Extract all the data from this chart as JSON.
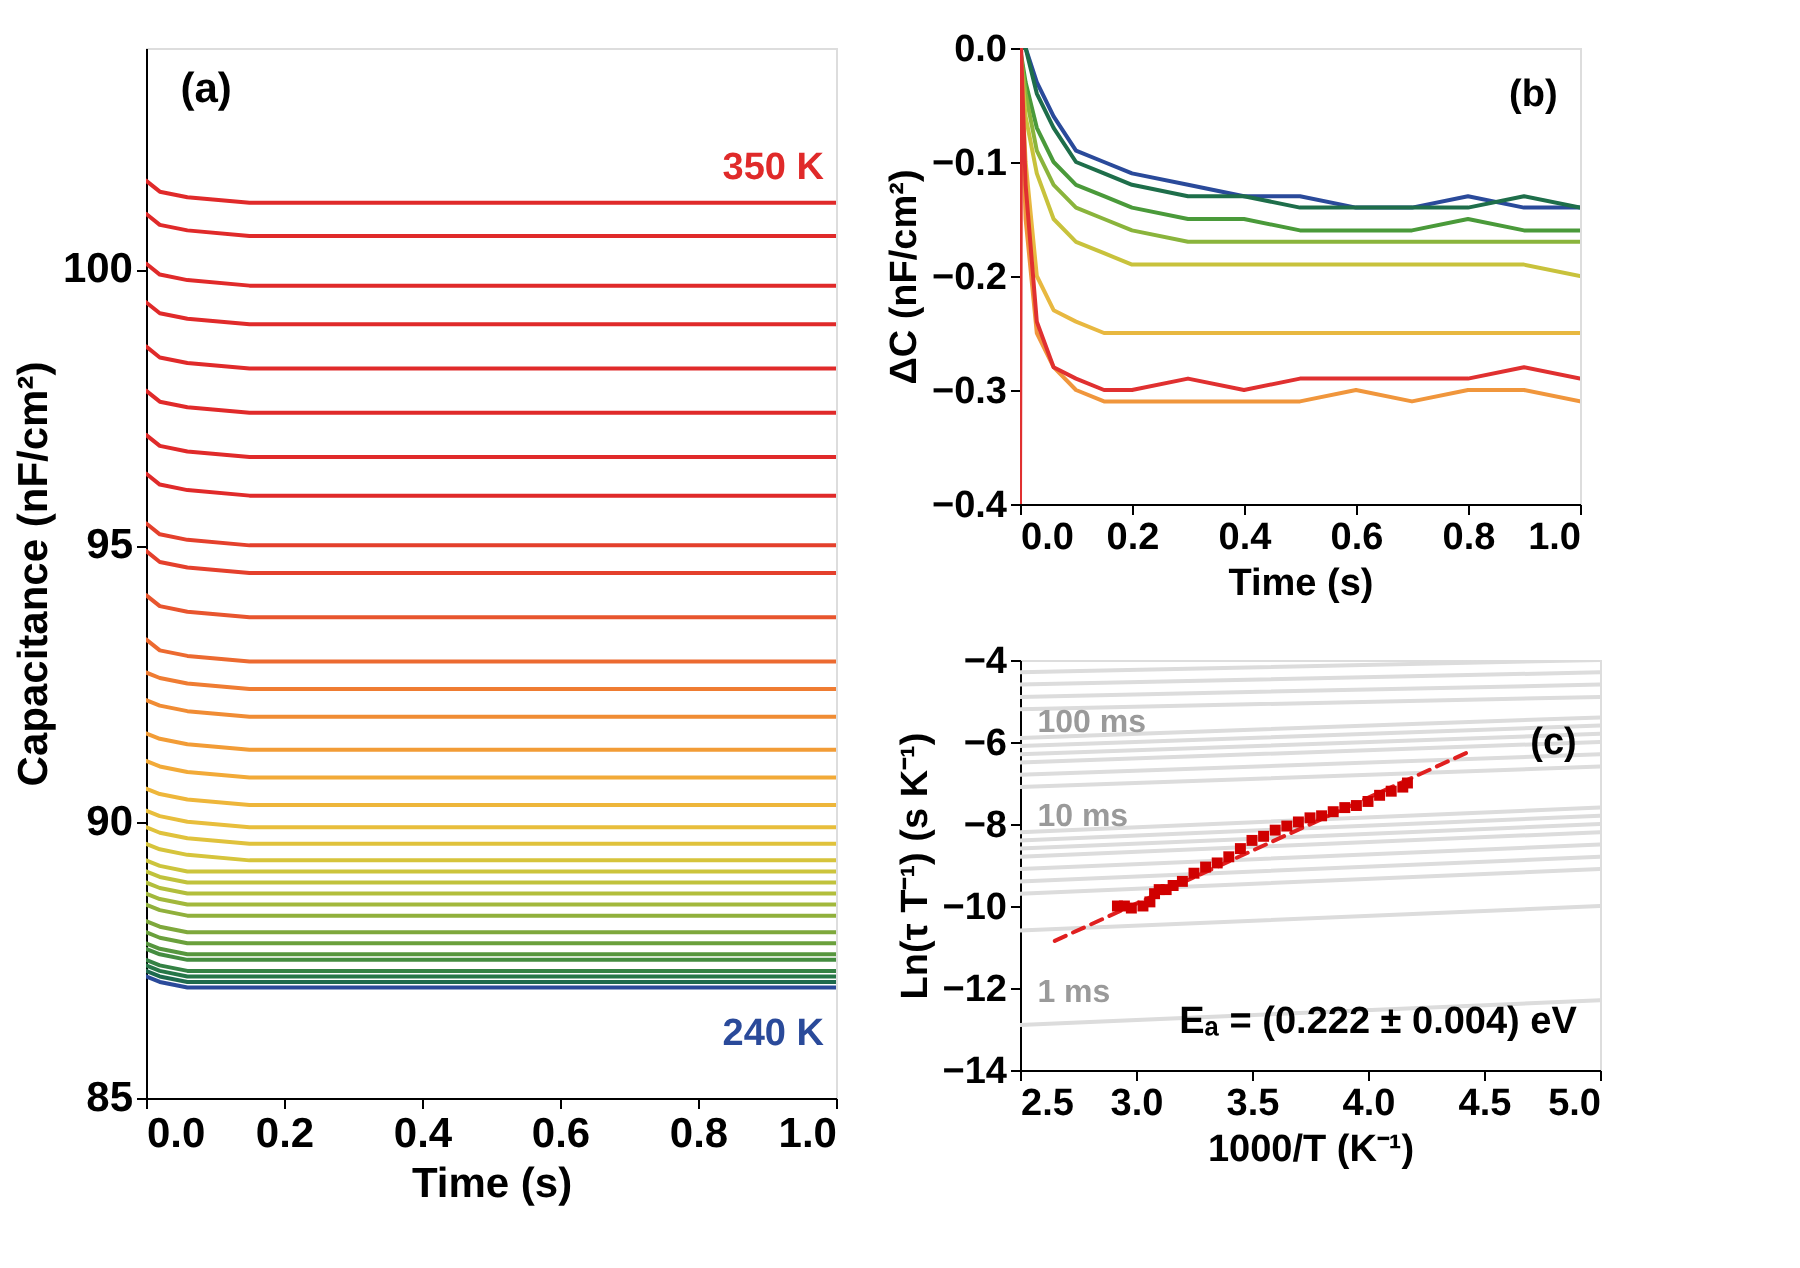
{
  "chart_data": [
    {
      "type": "line",
      "xlabel": "Time (s)",
      "ylabel": "Capacitance (nF/cm²)",
      "annotations": [
        "(a)"
      ],
      "x": [
        0,
        0.02,
        0.06,
        0.15,
        0.5,
        1.0
      ],
      "xlim": [
        0,
        1
      ],
      "xticks": [
        {
          "value": 0,
          "label": "0.0"
        },
        0.2,
        0.4,
        0.6,
        0.8,
        {
          "value": 1,
          "label": "1.0"
        }
      ],
      "ylim": [
        85,
        104
      ],
      "yticks": [
        85,
        90,
        95,
        100
      ],
      "series": [
        {
          "name": "350 K",
          "color": "#e02a2a",
          "values": [
            101.6,
            101.4,
            101.3,
            101.2,
            101.2,
            101.2
          ]
        },
        {
          "color": "#e02a2a",
          "values": [
            101.0,
            100.8,
            100.7,
            100.6,
            100.6,
            100.6
          ]
        },
        {
          "color": "#e02a2a",
          "values": [
            100.1,
            99.9,
            99.8,
            99.7,
            99.7,
            99.7
          ]
        },
        {
          "color": "#e02a2a",
          "values": [
            99.4,
            99.2,
            99.1,
            99.0,
            99.0,
            99.0
          ]
        },
        {
          "color": "#e02a2a",
          "values": [
            98.6,
            98.4,
            98.3,
            98.2,
            98.2,
            98.2
          ]
        },
        {
          "color": "#e02a2a",
          "values": [
            97.8,
            97.6,
            97.5,
            97.4,
            97.4,
            97.4
          ]
        },
        {
          "color": "#e02a2a",
          "values": [
            97.0,
            96.8,
            96.7,
            96.6,
            96.6,
            96.6
          ]
        },
        {
          "color": "#e02a2a",
          "values": [
            96.3,
            96.1,
            96.0,
            95.9,
            95.9,
            95.9
          ]
        },
        {
          "color": "#e4402c",
          "values": [
            95.4,
            95.2,
            95.1,
            95.0,
            95.0,
            95.0
          ]
        },
        {
          "color": "#e4402c",
          "values": [
            94.9,
            94.7,
            94.6,
            94.5,
            94.5,
            94.5
          ]
        },
        {
          "color": "#e8552e",
          "values": [
            94.1,
            93.9,
            93.8,
            93.7,
            93.7,
            93.7
          ]
        },
        {
          "color": "#ec6a30",
          "values": [
            93.3,
            93.1,
            93.0,
            92.9,
            92.9,
            92.9
          ]
        },
        {
          "color": "#ef7c32",
          "values": [
            92.7,
            92.6,
            92.5,
            92.4,
            92.4,
            92.4
          ]
        },
        {
          "color": "#f08c34",
          "values": [
            92.2,
            92.1,
            92.0,
            91.9,
            91.9,
            91.9
          ]
        },
        {
          "color": "#f29c36",
          "values": [
            91.6,
            91.5,
            91.4,
            91.3,
            91.3,
            91.3
          ]
        },
        {
          "color": "#f2aa38",
          "values": [
            91.1,
            91.0,
            90.9,
            90.8,
            90.8,
            90.8
          ]
        },
        {
          "color": "#eeb63a",
          "values": [
            90.6,
            90.5,
            90.4,
            90.3,
            90.3,
            90.3
          ]
        },
        {
          "color": "#e8be3c",
          "values": [
            90.2,
            90.1,
            90.0,
            89.9,
            89.9,
            89.9
          ]
        },
        {
          "color": "#e0c23c",
          "values": [
            89.9,
            89.8,
            89.7,
            89.6,
            89.6,
            89.6
          ]
        },
        {
          "color": "#d6c43c",
          "values": [
            89.6,
            89.5,
            89.4,
            89.3,
            89.3,
            89.3
          ]
        },
        {
          "color": "#ccc43c",
          "values": [
            89.3,
            89.2,
            89.1,
            89.1,
            89.1,
            89.1
          ]
        },
        {
          "color": "#c0c23c",
          "values": [
            89.1,
            89.0,
            88.9,
            88.9,
            88.9,
            88.9
          ]
        },
        {
          "color": "#b2be3c",
          "values": [
            88.9,
            88.8,
            88.7,
            88.7,
            88.7,
            88.7
          ]
        },
        {
          "color": "#a2b83c",
          "values": [
            88.7,
            88.6,
            88.5,
            88.5,
            88.5,
            88.5
          ]
        },
        {
          "color": "#90b03c",
          "values": [
            88.5,
            88.4,
            88.3,
            88.3,
            88.3,
            88.3
          ]
        },
        {
          "color": "#7ea83c",
          "values": [
            88.2,
            88.1,
            88.0,
            88.0,
            88.0,
            88.0
          ]
        },
        {
          "color": "#6aa03c",
          "values": [
            88.0,
            87.9,
            87.8,
            87.8,
            87.8,
            87.8
          ]
        },
        {
          "color": "#56963e",
          "values": [
            87.8,
            87.7,
            87.6,
            87.6,
            87.6,
            87.6
          ]
        },
        {
          "color": "#448c40",
          "values": [
            87.7,
            87.6,
            87.5,
            87.5,
            87.5,
            87.5
          ]
        },
        {
          "color": "#348244",
          "values": [
            87.5,
            87.4,
            87.3,
            87.3,
            87.3,
            87.3
          ]
        },
        {
          "color": "#267648",
          "values": [
            87.4,
            87.3,
            87.2,
            87.2,
            87.2,
            87.2
          ]
        },
        {
          "color": "#1e6a4e",
          "values": [
            87.3,
            87.2,
            87.1,
            87.1,
            87.1,
            87.1
          ]
        },
        {
          "name": "240 K",
          "color": "#2a4a9a",
          "values": [
            87.2,
            87.1,
            87.0,
            87.0,
            87.0,
            87.0
          ]
        }
      ]
    },
    {
      "type": "line",
      "xlabel": "Time (s)",
      "ylabel": "ΔC (nF/cm²)",
      "annotations": [
        "(b)"
      ],
      "x": [
        0,
        0.01,
        0.03,
        0.06,
        0.1,
        0.15,
        0.2,
        0.3,
        0.4,
        0.5,
        0.6,
        0.7,
        0.8,
        0.9,
        1.0
      ],
      "xlim": [
        0,
        1
      ],
      "xticks": [
        {
          "value": 0,
          "label": "0.0"
        },
        0.2,
        0.4,
        0.6,
        0.8,
        {
          "value": 1,
          "label": "1.0"
        }
      ],
      "ylim": [
        -0.4,
        0
      ],
      "yticks": [
        {
          "value": -0.4,
          "label": "−0.4"
        },
        {
          "value": -0.3,
          "label": "−0.3"
        },
        {
          "value": -0.2,
          "label": "−0.2"
        },
        {
          "value": -0.1,
          "label": "−0.1"
        },
        {
          "value": 0,
          "label": "0.0"
        }
      ],
      "series": [
        {
          "color": "#2a4a9a",
          "values": [
            0,
            0,
            -0.03,
            -0.06,
            -0.09,
            -0.1,
            -0.11,
            -0.12,
            -0.13,
            -0.13,
            -0.14,
            -0.14,
            -0.13,
            -0.14,
            -0.14
          ]
        },
        {
          "color": "#1e6e4a",
          "values": [
            0,
            0,
            -0.04,
            -0.07,
            -0.1,
            -0.11,
            -0.12,
            -0.13,
            -0.13,
            -0.14,
            -0.14,
            -0.14,
            -0.14,
            -0.13,
            -0.14
          ]
        },
        {
          "color": "#4a9a3a",
          "values": [
            0,
            -0.03,
            -0.07,
            -0.1,
            -0.12,
            -0.13,
            -0.14,
            -0.15,
            -0.15,
            -0.16,
            -0.16,
            -0.16,
            -0.15,
            -0.16,
            -0.16
          ]
        },
        {
          "color": "#8ab43c",
          "values": [
            0,
            -0.04,
            -0.09,
            -0.12,
            -0.14,
            -0.15,
            -0.16,
            -0.17,
            -0.17,
            -0.17,
            -0.17,
            -0.17,
            -0.17,
            -0.17,
            -0.17
          ]
        },
        {
          "color": "#c8c23c",
          "values": [
            0,
            -0.06,
            -0.11,
            -0.15,
            -0.17,
            -0.18,
            -0.19,
            -0.19,
            -0.19,
            -0.19,
            -0.19,
            -0.19,
            -0.19,
            -0.19,
            -0.2
          ]
        },
        {
          "color": "#e8b840",
          "values": [
            0,
            -0.1,
            -0.2,
            -0.23,
            -0.24,
            -0.25,
            -0.25,
            -0.25,
            -0.25,
            -0.25,
            -0.25,
            -0.25,
            -0.25,
            -0.25,
            -0.25
          ]
        },
        {
          "color": "#f0963c",
          "values": [
            0,
            -0.15,
            -0.25,
            -0.28,
            -0.3,
            -0.31,
            -0.31,
            -0.31,
            -0.31,
            -0.31,
            -0.3,
            -0.31,
            -0.3,
            -0.3,
            -0.31
          ]
        },
        {
          "color": "#e03030",
          "x": [
            0,
            0.002,
            0.01,
            0.03,
            0.06,
            0.1,
            0.15,
            0.2,
            0.3,
            0.4,
            0.5,
            0.6,
            0.7,
            0.8,
            0.9,
            1.0
          ],
          "values": [
            -0.4,
            0,
            -0.12,
            -0.24,
            -0.28,
            -0.29,
            -0.3,
            -0.3,
            -0.29,
            -0.3,
            -0.29,
            -0.29,
            -0.29,
            -0.29,
            -0.28,
            -0.29
          ]
        }
      ]
    },
    {
      "type": "scatter",
      "xlabel": "1000/T (K⁻¹)",
      "ylabel": "Ln(τ T⁻¹) (s K⁻¹)",
      "annotations": [
        "(c)",
        "Eₐ = (0.222 ± 0.004) eV",
        "100 ms",
        "10 ms",
        "1 ms"
      ],
      "xlim": [
        2.5,
        5.0
      ],
      "xticks": [
        2.5,
        {
          "value": 3,
          "label": "3.0"
        },
        3.5,
        {
          "value": 4,
          "label": "4.0"
        },
        4.5,
        {
          "value": 5,
          "label": "5.0"
        }
      ],
      "ylim": [
        -14,
        -4
      ],
      "yticks": [
        {
          "value": -14,
          "label": "−14"
        },
        {
          "value": -12,
          "label": "−12"
        },
        {
          "value": -10,
          "label": "−10"
        },
        {
          "value": -8,
          "label": "−8"
        },
        {
          "value": -6,
          "label": "−6"
        },
        {
          "value": -4,
          "label": "−4"
        }
      ],
      "series": [
        {
          "type": "line",
          "color": "#dcdcdc",
          "x": [
            2.5,
            5.0
          ],
          "values": [
            -4.3,
            -4.0
          ]
        },
        {
          "type": "line",
          "color": "#dcdcdc",
          "x": [
            2.5,
            5.0
          ],
          "values": [
            -4.6,
            -4.3
          ]
        },
        {
          "type": "line",
          "color": "#dcdcdc",
          "x": [
            2.5,
            5.0
          ],
          "values": [
            -4.9,
            -4.6
          ]
        },
        {
          "type": "line",
          "color": "#dcdcdc",
          "x": [
            2.5,
            5.0
          ],
          "values": [
            -5.2,
            -4.9
          ]
        },
        {
          "type": "line",
          "color": "#dcdcdc",
          "x": [
            2.5,
            5.0
          ],
          "values": [
            -5.9,
            -5.4
          ]
        },
        {
          "type": "line",
          "color": "#dcdcdc",
          "x": [
            2.5,
            5.0
          ],
          "values": [
            -6.1,
            -5.6
          ]
        },
        {
          "type": "line",
          "color": "#dcdcdc",
          "x": [
            2.5,
            5.0
          ],
          "values": [
            -6.3,
            -5.8
          ]
        },
        {
          "type": "line",
          "color": "#dcdcdc",
          "x": [
            2.5,
            5.0
          ],
          "values": [
            -6.5,
            -6.0
          ]
        },
        {
          "type": "line",
          "color": "#dcdcdc",
          "x": [
            2.5,
            5.0
          ],
          "values": [
            -6.8,
            -6.3
          ]
        },
        {
          "type": "line",
          "color": "#dcdcdc",
          "x": [
            2.5,
            5.0
          ],
          "values": [
            -7.1,
            -6.6
          ]
        },
        {
          "type": "line",
          "color": "#dcdcdc",
          "x": [
            2.5,
            5.0
          ],
          "values": [
            -8.2,
            -7.6
          ]
        },
        {
          "type": "line",
          "color": "#dcdcdc",
          "x": [
            2.5,
            5.0
          ],
          "values": [
            -8.4,
            -7.8
          ]
        },
        {
          "type": "line",
          "color": "#dcdcdc",
          "x": [
            2.5,
            5.0
          ],
          "values": [
            -8.6,
            -8.0
          ]
        },
        {
          "type": "line",
          "color": "#dcdcdc",
          "x": [
            2.5,
            5.0
          ],
          "values": [
            -8.8,
            -8.2
          ]
        },
        {
          "type": "line",
          "color": "#dcdcdc",
          "x": [
            2.5,
            5.0
          ],
          "values": [
            -9.1,
            -8.5
          ]
        },
        {
          "type": "line",
          "color": "#dcdcdc",
          "x": [
            2.5,
            5.0
          ],
          "values": [
            -9.4,
            -8.8
          ]
        },
        {
          "type": "line",
          "color": "#dcdcdc",
          "x": [
            2.5,
            5.0
          ],
          "values": [
            -9.7,
            -9.1
          ]
        },
        {
          "type": "line",
          "color": "#dcdcdc",
          "x": [
            2.5,
            5.0
          ],
          "values": [
            -10.6,
            -10.0
          ]
        },
        {
          "type": "line",
          "color": "#dcdcdc",
          "x": [
            2.5,
            5.0
          ],
          "values": [
            -12.9,
            -12.3
          ]
        },
        {
          "type": "line",
          "color": "#e02020",
          "line_style": "dashed",
          "x": [
            2.65,
            4.45
          ],
          "values": [
            -10.85,
            -6.2
          ]
        },
        {
          "type": "scatter",
          "color": "#d00000",
          "marker": "square",
          "x": [
            2.92,
            2.95,
            2.98,
            3.0,
            3.03,
            3.06,
            3.08,
            3.1,
            3.13,
            3.16,
            3.2,
            3.25,
            3.3,
            3.35,
            3.4,
            3.45,
            3.5,
            3.55,
            3.6,
            3.65,
            3.7,
            3.75,
            3.8,
            3.85,
            3.9,
            3.95,
            4.0,
            4.05,
            4.1,
            4.15,
            4.17
          ],
          "values": [
            -10.0,
            -10.0,
            -10.05,
            null,
            -10.0,
            -9.9,
            -9.7,
            -9.6,
            -9.6,
            -9.5,
            -9.4,
            -9.2,
            -9.05,
            -8.95,
            -8.8,
            -8.6,
            -8.4,
            -8.3,
            -8.15,
            -8.05,
            -7.95,
            -7.85,
            -7.8,
            -7.7,
            -7.6,
            -7.55,
            -7.45,
            -7.3,
            -7.2,
            -7.1,
            -7.0
          ]
        }
      ]
    }
  ]
}
